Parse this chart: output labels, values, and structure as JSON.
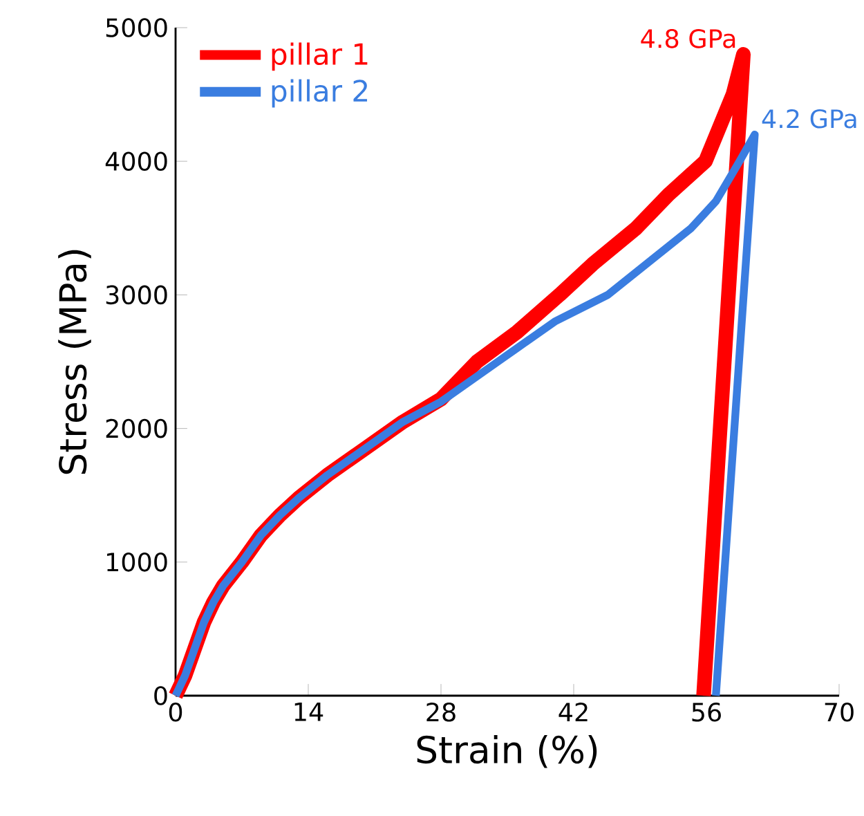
{
  "chart_data": {
    "type": "line",
    "xlabel": "Strain (%)",
    "ylabel": "Stress (MPa)",
    "xlim": [
      0,
      70
    ],
    "ylim": [
      0,
      5000
    ],
    "xticks": [
      0,
      14,
      28,
      42,
      56,
      70
    ],
    "yticks": [
      0,
      1000,
      2000,
      3000,
      4000,
      5000
    ],
    "grid": false,
    "legend": "top left",
    "marker": "none",
    "line_style": "solid",
    "series": [
      {
        "name": "pillar 1",
        "color": "#ff0000",
        "x": [
          0,
          1,
          2,
          3,
          4,
          5,
          7,
          9,
          11,
          13,
          16,
          20,
          24,
          28,
          31.8,
          36,
          40.5,
          44,
          48.6,
          52,
          55.9,
          58.8,
          59.9,
          55.7
        ],
        "values": [
          0,
          150,
          350,
          550,
          700,
          820,
          1000,
          1200,
          1350,
          1480,
          1650,
          1850,
          2050,
          2220,
          2500,
          2720,
          3000,
          3230,
          3500,
          3750,
          4000,
          4500,
          4800,
          0
        ]
      },
      {
        "name": "pillar 2",
        "color": "#3a7de0",
        "x": [
          0,
          1,
          2,
          3,
          4,
          5,
          7,
          9,
          11,
          13,
          16,
          20,
          24,
          28,
          34,
          40,
          45.6,
          50,
          54.4,
          57,
          59.5,
          61.1,
          57.0
        ],
        "values": [
          0,
          150,
          350,
          550,
          700,
          820,
          1000,
          1200,
          1350,
          1480,
          1650,
          1850,
          2050,
          2200,
          2500,
          2800,
          3000,
          3250,
          3500,
          3700,
          4000,
          4200,
          0
        ]
      }
    ],
    "annotations": [
      {
        "text": "4.8 GPa",
        "x": 59.9,
        "y": 4800
      },
      {
        "text": "4.2 GPa",
        "x": 61.1,
        "y": 4200
      }
    ]
  }
}
